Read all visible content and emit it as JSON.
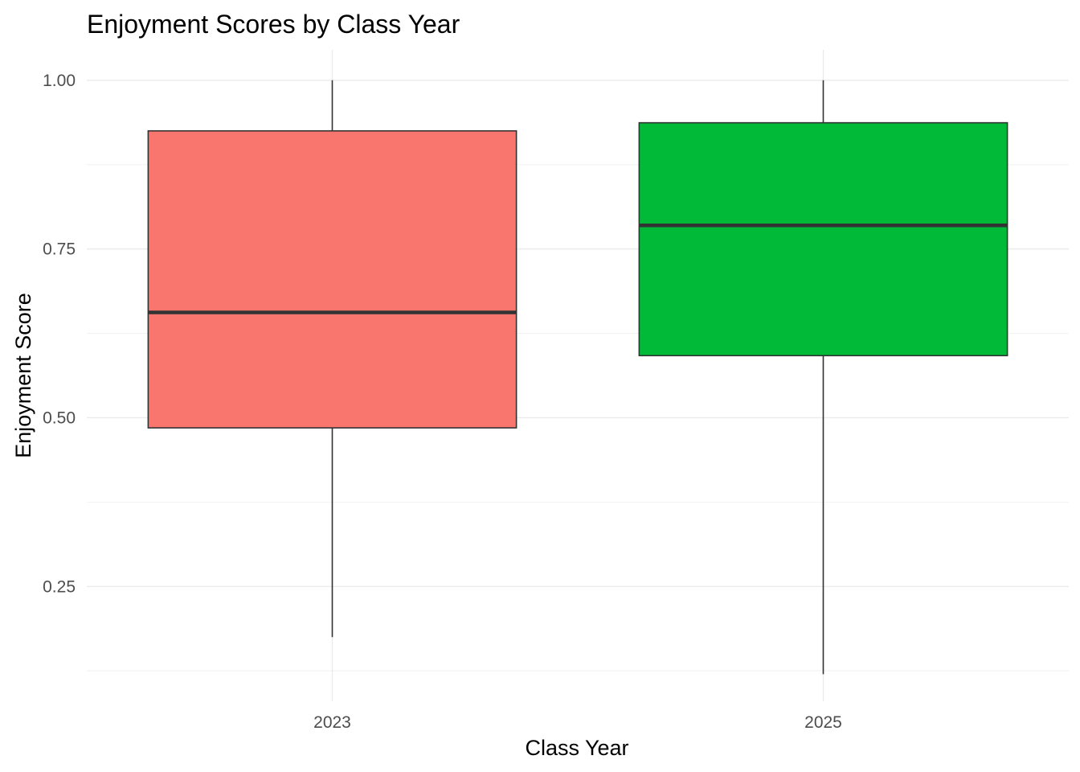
{
  "chart_data": {
    "type": "boxplot",
    "title": "Enjoyment Scores by Class Year",
    "xlabel": "Class Year",
    "ylabel": "Enjoyment Score",
    "categories": [
      "2023",
      "2025"
    ],
    "boxes": [
      {
        "category": "2023",
        "min": 0.175,
        "q1": 0.485,
        "median": 0.656,
        "q3": 0.925,
        "max": 1.0,
        "color": "#F8766D"
      },
      {
        "category": "2025",
        "min": 0.12,
        "q1": 0.592,
        "median": 0.785,
        "q3": 0.937,
        "max": 1.0,
        "color": "#00BA38"
      }
    ],
    "ylim": [
      0.08,
      1.045
    ],
    "yticks": [
      {
        "value": 0.25,
        "label": "0.25"
      },
      {
        "value": 0.5,
        "label": "0.50"
      },
      {
        "value": 0.75,
        "label": "0.75"
      },
      {
        "value": 1.0,
        "label": "1.00"
      }
    ],
    "y_minor_ticks": [
      0.125,
      0.375,
      0.625,
      0.875
    ],
    "grid": true,
    "legend": "none"
  }
}
